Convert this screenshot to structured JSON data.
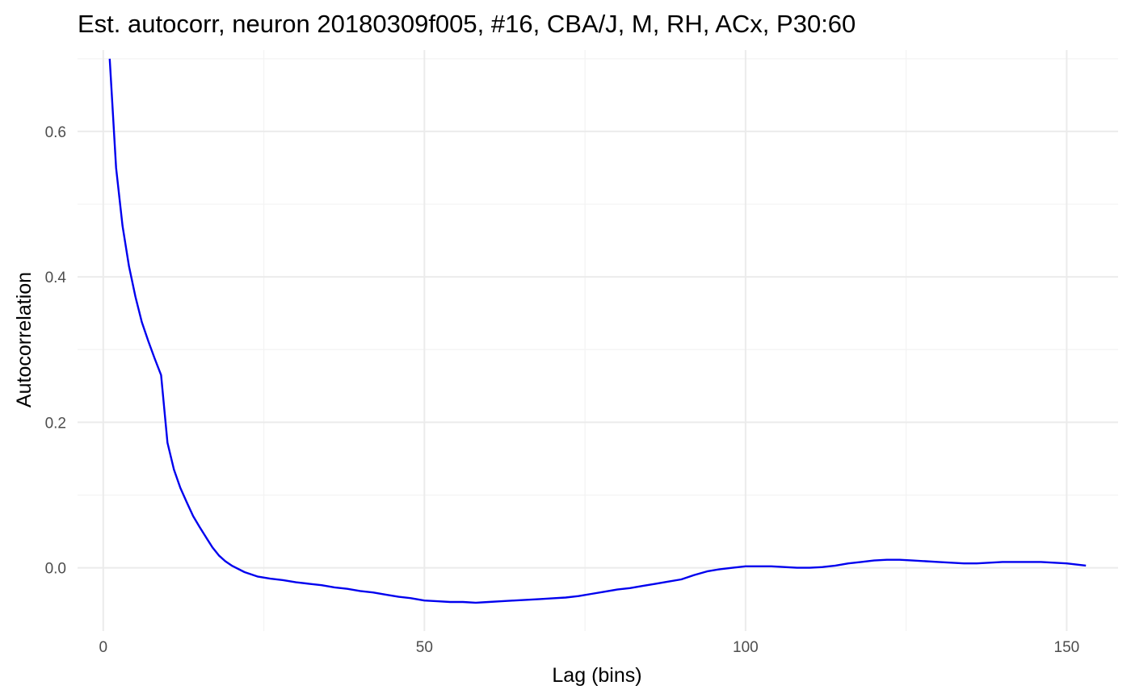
{
  "chart_data": {
    "type": "line",
    "title": "Est. autocorr, neuron 20180309f005, #16, CBA/J, M, RH, ACx, P30:60",
    "xlabel": "Lag (bins)",
    "ylabel": "Autocorrelation",
    "xlim": [
      -4,
      158
    ],
    "ylim": [
      -0.087,
      0.712
    ],
    "x_ticks": [
      0,
      50,
      100,
      150
    ],
    "x_tick_labels": [
      "0",
      "50",
      "100",
      "150"
    ],
    "y_ticks": [
      0.0,
      0.2,
      0.4,
      0.6
    ],
    "y_tick_labels": [
      "0.0",
      "0.2",
      "0.4",
      "0.6"
    ],
    "grid": true,
    "series": [
      {
        "color": "#0000ee",
        "x": [
          1,
          2,
          3,
          4,
          5,
          6,
          7,
          8,
          9,
          10,
          11,
          12,
          13,
          14,
          15,
          16,
          17,
          18,
          19,
          20,
          22,
          24,
          26,
          28,
          30,
          32,
          34,
          36,
          38,
          40,
          42,
          44,
          46,
          48,
          50,
          52,
          54,
          56,
          58,
          60,
          62,
          64,
          66,
          68,
          70,
          72,
          74,
          76,
          78,
          80,
          82,
          84,
          86,
          88,
          90,
          92,
          94,
          96,
          98,
          100,
          102,
          104,
          106,
          108,
          110,
          112,
          114,
          116,
          118,
          120,
          122,
          124,
          126,
          128,
          130,
          132,
          134,
          136,
          138,
          140,
          142,
          144,
          146,
          148,
          150,
          153
        ],
        "y": [
          0.7,
          0.55,
          0.47,
          0.415,
          0.373,
          0.338,
          0.312,
          0.288,
          0.265,
          0.172,
          0.135,
          0.11,
          0.09,
          0.071,
          0.056,
          0.042,
          0.028,
          0.017,
          0.009,
          0.003,
          -0.006,
          -0.012,
          -0.015,
          -0.017,
          -0.02,
          -0.022,
          -0.024,
          -0.027,
          -0.029,
          -0.032,
          -0.034,
          -0.037,
          -0.04,
          -0.042,
          -0.045,
          -0.046,
          -0.047,
          -0.047,
          -0.048,
          -0.047,
          -0.046,
          -0.045,
          -0.044,
          -0.043,
          -0.042,
          -0.041,
          -0.039,
          -0.036,
          -0.033,
          -0.03,
          -0.028,
          -0.025,
          -0.022,
          -0.019,
          -0.016,
          -0.01,
          -0.005,
          -0.002,
          0.0,
          0.002,
          0.002,
          0.002,
          0.001,
          0.0,
          0.0,
          0.001,
          0.003,
          0.006,
          0.008,
          0.01,
          0.011,
          0.011,
          0.01,
          0.009,
          0.008,
          0.007,
          0.006,
          0.006,
          0.007,
          0.008,
          0.008,
          0.008,
          0.008,
          0.007,
          0.006,
          0.003
        ]
      }
    ]
  }
}
